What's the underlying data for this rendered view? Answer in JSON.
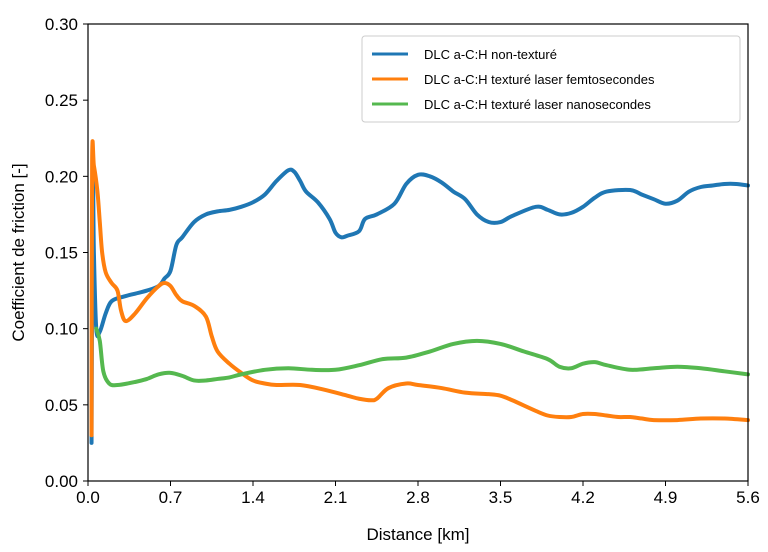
{
  "chart_data": {
    "type": "line",
    "title": "",
    "xlabel": "Distance [km]",
    "ylabel": "Coefficient de friction [-]",
    "xlim": [
      0,
      5.6
    ],
    "ylim": [
      0,
      0.3
    ],
    "x_ticks": [
      "0.0",
      "0.7",
      "1.4",
      "2.1",
      "2.8",
      "3.5",
      "4.2",
      "4.9",
      "5.6"
    ],
    "y_ticks": [
      "0.00",
      "0.05",
      "0.10",
      "0.15",
      "0.20",
      "0.25",
      "0.30"
    ],
    "x_tick_values": [
      0,
      0.7,
      1.4,
      2.1,
      2.8,
      3.5,
      4.2,
      4.9,
      5.6
    ],
    "y_tick_values": [
      0,
      0.05,
      0.1,
      0.15,
      0.2,
      0.25,
      0.3
    ],
    "grid": false,
    "legend_position": "top-right",
    "series": [
      {
        "name": "DLC a-C:H non-texturé",
        "color": "#1f77b4",
        "points": [
          [
            0.03,
            0.025
          ],
          [
            0.04,
            0.2
          ],
          [
            0.05,
            0.15
          ],
          [
            0.07,
            0.1
          ],
          [
            0.1,
            0.098
          ],
          [
            0.15,
            0.11
          ],
          [
            0.2,
            0.118
          ],
          [
            0.3,
            0.121
          ],
          [
            0.4,
            0.123
          ],
          [
            0.5,
            0.125
          ],
          [
            0.6,
            0.128
          ],
          [
            0.65,
            0.133
          ],
          [
            0.7,
            0.138
          ],
          [
            0.75,
            0.155
          ],
          [
            0.8,
            0.16
          ],
          [
            0.9,
            0.17
          ],
          [
            1.0,
            0.175
          ],
          [
            1.1,
            0.177
          ],
          [
            1.2,
            0.178
          ],
          [
            1.3,
            0.18
          ],
          [
            1.4,
            0.183
          ],
          [
            1.5,
            0.188
          ],
          [
            1.6,
            0.197
          ],
          [
            1.7,
            0.204
          ],
          [
            1.75,
            0.203
          ],
          [
            1.8,
            0.197
          ],
          [
            1.85,
            0.19
          ],
          [
            1.95,
            0.183
          ],
          [
            2.05,
            0.172
          ],
          [
            2.1,
            0.163
          ],
          [
            2.15,
            0.16
          ],
          [
            2.2,
            0.161
          ],
          [
            2.3,
            0.164
          ],
          [
            2.35,
            0.172
          ],
          [
            2.45,
            0.175
          ],
          [
            2.6,
            0.182
          ],
          [
            2.7,
            0.195
          ],
          [
            2.8,
            0.201
          ],
          [
            2.9,
            0.2
          ],
          [
            3.0,
            0.196
          ],
          [
            3.1,
            0.19
          ],
          [
            3.2,
            0.185
          ],
          [
            3.3,
            0.175
          ],
          [
            3.4,
            0.17
          ],
          [
            3.5,
            0.17
          ],
          [
            3.6,
            0.174
          ],
          [
            3.8,
            0.18
          ],
          [
            3.9,
            0.178
          ],
          [
            4.0,
            0.175
          ],
          [
            4.1,
            0.176
          ],
          [
            4.2,
            0.18
          ],
          [
            4.3,
            0.186
          ],
          [
            4.4,
            0.19
          ],
          [
            4.6,
            0.191
          ],
          [
            4.7,
            0.188
          ],
          [
            4.8,
            0.185
          ],
          [
            4.9,
            0.182
          ],
          [
            5.0,
            0.184
          ],
          [
            5.1,
            0.19
          ],
          [
            5.2,
            0.193
          ],
          [
            5.3,
            0.194
          ],
          [
            5.4,
            0.195
          ],
          [
            5.5,
            0.195
          ],
          [
            5.6,
            0.194
          ]
        ]
      },
      {
        "name": "DLC a-C:H texturé laser femtosecondes",
        "color": "#ff7f0e",
        "points": [
          [
            0.03,
            0.03
          ],
          [
            0.035,
            0.21
          ],
          [
            0.05,
            0.207
          ],
          [
            0.08,
            0.19
          ],
          [
            0.1,
            0.17
          ],
          [
            0.12,
            0.15
          ],
          [
            0.15,
            0.137
          ],
          [
            0.2,
            0.13
          ],
          [
            0.25,
            0.125
          ],
          [
            0.28,
            0.112
          ],
          [
            0.32,
            0.105
          ],
          [
            0.4,
            0.11
          ],
          [
            0.5,
            0.12
          ],
          [
            0.6,
            0.128
          ],
          [
            0.65,
            0.13
          ],
          [
            0.7,
            0.128
          ],
          [
            0.75,
            0.122
          ],
          [
            0.8,
            0.118
          ],
          [
            0.9,
            0.115
          ],
          [
            1.0,
            0.108
          ],
          [
            1.05,
            0.095
          ],
          [
            1.1,
            0.085
          ],
          [
            1.2,
            0.077
          ],
          [
            1.3,
            0.071
          ],
          [
            1.4,
            0.066
          ],
          [
            1.5,
            0.064
          ],
          [
            1.6,
            0.063
          ],
          [
            1.8,
            0.063
          ],
          [
            2.0,
            0.06
          ],
          [
            2.2,
            0.056
          ],
          [
            2.3,
            0.054
          ],
          [
            2.4,
            0.053
          ],
          [
            2.45,
            0.054
          ],
          [
            2.55,
            0.061
          ],
          [
            2.7,
            0.064
          ],
          [
            2.8,
            0.063
          ],
          [
            3.0,
            0.061
          ],
          [
            3.2,
            0.058
          ],
          [
            3.4,
            0.057
          ],
          [
            3.5,
            0.056
          ],
          [
            3.6,
            0.053
          ],
          [
            3.8,
            0.046
          ],
          [
            3.9,
            0.043
          ],
          [
            4.0,
            0.042
          ],
          [
            4.1,
            0.042
          ],
          [
            4.2,
            0.044
          ],
          [
            4.3,
            0.044
          ],
          [
            4.4,
            0.043
          ],
          [
            4.5,
            0.042
          ],
          [
            4.6,
            0.042
          ],
          [
            4.7,
            0.041
          ],
          [
            4.8,
            0.04
          ],
          [
            5.0,
            0.04
          ],
          [
            5.2,
            0.041
          ],
          [
            5.4,
            0.041
          ],
          [
            5.6,
            0.04
          ]
        ]
      },
      {
        "name": "DLC a-C:H texturé laser nanosecondes",
        "color": "#55b84f",
        "points": [
          [
            0.07,
            0.1
          ],
          [
            0.1,
            0.092
          ],
          [
            0.13,
            0.072
          ],
          [
            0.18,
            0.064
          ],
          [
            0.25,
            0.063
          ],
          [
            0.4,
            0.065
          ],
          [
            0.5,
            0.067
          ],
          [
            0.6,
            0.07
          ],
          [
            0.7,
            0.071
          ],
          [
            0.8,
            0.069
          ],
          [
            0.9,
            0.066
          ],
          [
            1.0,
            0.066
          ],
          [
            1.1,
            0.067
          ],
          [
            1.2,
            0.068
          ],
          [
            1.3,
            0.07
          ],
          [
            1.5,
            0.073
          ],
          [
            1.7,
            0.074
          ],
          [
            1.9,
            0.073
          ],
          [
            2.1,
            0.073
          ],
          [
            2.3,
            0.076
          ],
          [
            2.5,
            0.08
          ],
          [
            2.7,
            0.081
          ],
          [
            2.9,
            0.085
          ],
          [
            3.1,
            0.09
          ],
          [
            3.3,
            0.092
          ],
          [
            3.5,
            0.09
          ],
          [
            3.7,
            0.085
          ],
          [
            3.9,
            0.08
          ],
          [
            4.0,
            0.075
          ],
          [
            4.1,
            0.074
          ],
          [
            4.2,
            0.077
          ],
          [
            4.3,
            0.078
          ],
          [
            4.4,
            0.076
          ],
          [
            4.6,
            0.073
          ],
          [
            4.8,
            0.074
          ],
          [
            5.0,
            0.075
          ],
          [
            5.2,
            0.074
          ],
          [
            5.4,
            0.072
          ],
          [
            5.6,
            0.07
          ]
        ]
      }
    ]
  }
}
